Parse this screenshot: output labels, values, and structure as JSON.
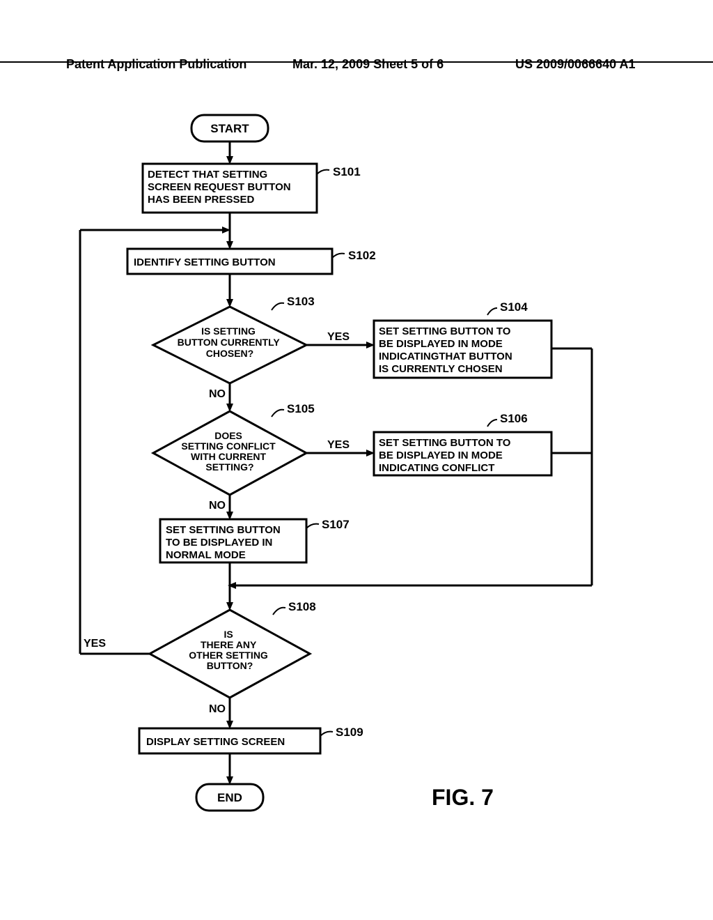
{
  "header": {
    "left": "Patent Application Publication",
    "center": "Mar. 12, 2009  Sheet 5 of 6",
    "right": "US 2009/0066640 A1"
  },
  "figure_label": "FIG. 7",
  "nodes": {
    "start": {
      "label": "START"
    },
    "s101": {
      "label": "DETECT THAT SETTING SCREEN REQUEST BUTTON HAS BEEN PRESSED",
      "ref": "S101"
    },
    "s102": {
      "label": "IDENTIFY SETTING BUTTON",
      "ref": "S102"
    },
    "s103": {
      "label": "IS SETTING BUTTON CURRENTLY CHOSEN?",
      "ref": "S103"
    },
    "s104": {
      "label": "SET SETTING BUTTON TO BE DISPLAYED IN MODE INDICATINGTHAT BUTTON IS CURRENTLY CHOSEN",
      "ref": "S104"
    },
    "s105": {
      "label": "DOES SETTING CONFLICT WITH CURRENT SETTING?",
      "ref": "S105"
    },
    "s106": {
      "label": "SET SETTING BUTTON TO BE DISPLAYED IN MODE INDICATING CONFLICT",
      "ref": "S106"
    },
    "s107": {
      "label": "SET SETTING BUTTON TO BE DISPLAYED IN NORMAL MODE",
      "ref": "S107"
    },
    "s108": {
      "label": "IS THERE ANY OTHER SETTING BUTTON?",
      "ref": "S108"
    },
    "s109": {
      "label": "DISPLAY SETTING SCREEN",
      "ref": "S109"
    },
    "end": {
      "label": "END"
    }
  },
  "edges": {
    "yes": "YES",
    "no": "NO"
  },
  "style": {
    "stroke": "#000000",
    "stroke_width_box": 3,
    "stroke_width_arrow": 3,
    "fill": "#ffffff",
    "font_size_box": 15,
    "font_size_label": 17,
    "font_size_fig": 30,
    "font_size_header": 18
  }
}
